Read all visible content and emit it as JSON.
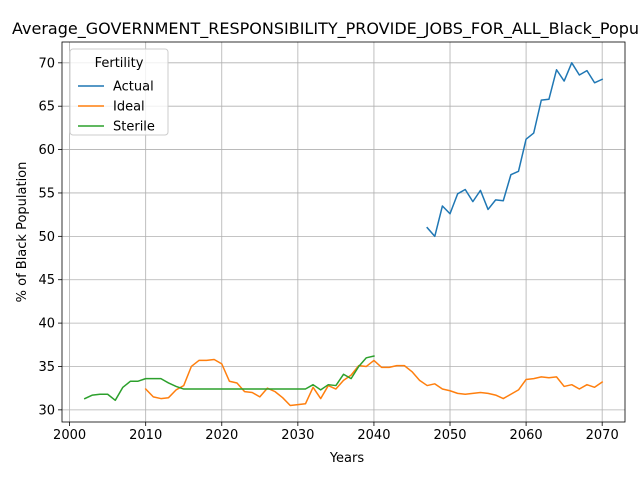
{
  "chart_data": {
    "type": "line",
    "title": "Average_GOVERNMENT_RESPONSIBILITY_PROVIDE_JOBS_FOR_ALL_Black_Population",
    "xlabel": "Years",
    "ylabel": "% of Black Population",
    "xlim": [
      1999,
      2073
    ],
    "ylim": [
      28.6,
      72.4
    ],
    "xticks": [
      2000,
      2010,
      2020,
      2030,
      2040,
      2050,
      2060,
      2070
    ],
    "yticks": [
      30,
      35,
      40,
      45,
      50,
      55,
      60,
      65,
      70
    ],
    "grid": true,
    "legend": {
      "title": "Fertility",
      "placement": "top-left"
    },
    "series": [
      {
        "name": "Actual",
        "color": "#1f77b4",
        "points": [
          [
            2047,
            51.0
          ],
          [
            2048,
            50.0
          ],
          [
            2049,
            53.5
          ],
          [
            2050,
            52.6
          ],
          [
            2051,
            54.9
          ],
          [
            2052,
            55.4
          ],
          [
            2053,
            54.0
          ],
          [
            2054,
            55.3
          ],
          [
            2055,
            53.1
          ],
          [
            2056,
            54.2
          ],
          [
            2057,
            54.1
          ],
          [
            2058,
            57.1
          ],
          [
            2059,
            57.5
          ],
          [
            2060,
            61.2
          ],
          [
            2061,
            61.9
          ],
          [
            2062,
            65.7
          ],
          [
            2063,
            65.8
          ],
          [
            2064,
            69.2
          ],
          [
            2065,
            67.9
          ],
          [
            2066,
            70.0
          ],
          [
            2067,
            68.6
          ],
          [
            2068,
            69.1
          ],
          [
            2069,
            67.7
          ],
          [
            2070,
            68.1
          ]
        ]
      },
      {
        "name": "Ideal",
        "color": "#ff7f0e",
        "points": [
          [
            2010,
            32.4
          ],
          [
            2011,
            31.5
          ],
          [
            2012,
            31.3
          ],
          [
            2013,
            31.4
          ],
          [
            2014,
            32.3
          ],
          [
            2015,
            32.8
          ],
          [
            2016,
            35.0
          ],
          [
            2017,
            35.7
          ],
          [
            2018,
            35.7
          ],
          [
            2019,
            35.8
          ],
          [
            2020,
            35.3
          ],
          [
            2021,
            33.3
          ],
          [
            2022,
            33.1
          ],
          [
            2023,
            32.1
          ],
          [
            2024,
            32.0
          ],
          [
            2025,
            31.5
          ],
          [
            2026,
            32.5
          ],
          [
            2027,
            32.1
          ],
          [
            2028,
            31.4
          ],
          [
            2029,
            30.5
          ],
          [
            2030,
            30.6
          ],
          [
            2031,
            30.7
          ],
          [
            2032,
            32.6
          ],
          [
            2033,
            31.3
          ],
          [
            2034,
            32.8
          ],
          [
            2035,
            32.4
          ],
          [
            2036,
            33.4
          ],
          [
            2037,
            34.0
          ],
          [
            2038,
            35.1
          ],
          [
            2039,
            35.0
          ],
          [
            2040,
            35.7
          ],
          [
            2041,
            34.9
          ],
          [
            2042,
            34.9
          ],
          [
            2043,
            35.1
          ],
          [
            2044,
            35.1
          ],
          [
            2045,
            34.4
          ],
          [
            2046,
            33.4
          ],
          [
            2047,
            32.8
          ],
          [
            2048,
            33.0
          ],
          [
            2049,
            32.4
          ],
          [
            2050,
            32.2
          ],
          [
            2051,
            31.9
          ],
          [
            2052,
            31.8
          ],
          [
            2053,
            31.9
          ],
          [
            2054,
            32.0
          ],
          [
            2055,
            31.9
          ],
          [
            2056,
            31.7
          ],
          [
            2057,
            31.3
          ],
          [
            2058,
            31.8
          ],
          [
            2059,
            32.3
          ],
          [
            2060,
            33.5
          ],
          [
            2061,
            33.6
          ],
          [
            2062,
            33.8
          ],
          [
            2063,
            33.7
          ],
          [
            2064,
            33.8
          ],
          [
            2065,
            32.7
          ],
          [
            2066,
            32.9
          ],
          [
            2067,
            32.4
          ],
          [
            2068,
            32.9
          ],
          [
            2069,
            32.6
          ],
          [
            2070,
            33.2
          ]
        ]
      },
      {
        "name": "Sterile",
        "color": "#2ca02c",
        "points": [
          [
            2002,
            31.3
          ],
          [
            2003,
            31.7
          ],
          [
            2004,
            31.8
          ],
          [
            2005,
            31.8
          ],
          [
            2006,
            31.1
          ],
          [
            2007,
            32.6
          ],
          [
            2008,
            33.3
          ],
          [
            2009,
            33.3
          ],
          [
            2010,
            33.6
          ],
          [
            2011,
            33.6
          ],
          [
            2012,
            33.6
          ],
          [
            2013,
            33.1
          ],
          [
            2014,
            32.7
          ],
          [
            2015,
            32.4
          ],
          [
            2016,
            32.4
          ],
          [
            2017,
            32.4
          ],
          [
            2018,
            32.4
          ],
          [
            2019,
            32.4
          ],
          [
            2020,
            32.4
          ],
          [
            2021,
            32.4
          ],
          [
            2022,
            32.4
          ],
          [
            2023,
            32.4
          ],
          [
            2024,
            32.4
          ],
          [
            2025,
            32.4
          ],
          [
            2026,
            32.4
          ],
          [
            2027,
            32.4
          ],
          [
            2028,
            32.4
          ],
          [
            2029,
            32.4
          ],
          [
            2030,
            32.4
          ],
          [
            2031,
            32.4
          ],
          [
            2032,
            32.9
          ],
          [
            2033,
            32.3
          ],
          [
            2034,
            32.9
          ],
          [
            2035,
            32.8
          ],
          [
            2036,
            34.1
          ],
          [
            2037,
            33.6
          ],
          [
            2038,
            35.0
          ],
          [
            2039,
            36.0
          ],
          [
            2040,
            36.2
          ]
        ]
      }
    ]
  }
}
